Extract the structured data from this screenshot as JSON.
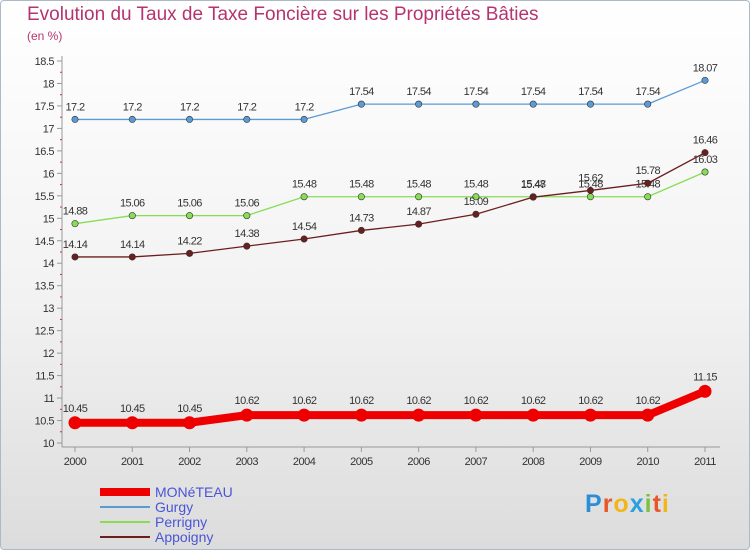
{
  "chart_data": {
    "type": "line",
    "title": "Evolution du Taux de Taxe Foncière sur les Propriétés Bâties",
    "subtitle": "(en %)",
    "xlabel": "",
    "ylabel": "",
    "x": [
      "2000",
      "2001",
      "2002",
      "2003",
      "2004",
      "2005",
      "2006",
      "2007",
      "2008",
      "2009",
      "2010",
      "2011"
    ],
    "ylim": [
      10,
      18.5
    ],
    "yticks": [
      "10",
      "10.5",
      "11",
      "11.5",
      "12",
      "12.5",
      "13",
      "13.5",
      "14",
      "14.5",
      "15",
      "15.5",
      "16",
      "16.5",
      "17",
      "17.5",
      "18",
      "18.5"
    ],
    "grid": false,
    "series": [
      {
        "name": "MONéTEAU",
        "color": "#ee0000",
        "emphasis": true,
        "values": [
          10.45,
          10.45,
          10.45,
          10.62,
          10.62,
          10.62,
          10.62,
          10.62,
          10.62,
          10.62,
          10.62,
          11.15
        ],
        "labels": [
          "10.45",
          "10.45",
          "10.45",
          "10.62",
          "10.62",
          "10.62",
          "10.62",
          "10.62",
          "10.62",
          "10.62",
          "10.62",
          "11.15"
        ]
      },
      {
        "name": "Gurgy",
        "color": "#5b9bd5",
        "values": [
          17.2,
          17.2,
          17.2,
          17.2,
          17.2,
          17.54,
          17.54,
          17.54,
          17.54,
          17.54,
          17.54,
          18.07
        ],
        "labels": [
          "17.2",
          "17.2",
          "17.2",
          "17.2",
          "17.2",
          "17.54",
          "17.54",
          "17.54",
          "17.54",
          "17.54",
          "17.54",
          "18.07"
        ]
      },
      {
        "name": "Perrigny",
        "color": "#88dd55",
        "values": [
          14.88,
          15.06,
          15.06,
          15.06,
          15.48,
          15.48,
          15.48,
          15.48,
          15.48,
          15.48,
          15.48,
          16.03
        ],
        "labels": [
          "14.88",
          "15.06",
          "15.06",
          "15.06",
          "15.48",
          "15.48",
          "15.48",
          "15.48",
          "15.48",
          "15.48",
          "15.48",
          "16.03"
        ]
      },
      {
        "name": "Appoigny",
        "color": "#6b1e1e",
        "values": [
          14.14,
          14.14,
          14.22,
          14.38,
          14.54,
          14.73,
          14.87,
          15.09,
          15.47,
          15.62,
          15.78,
          16.46
        ],
        "labels": [
          "14.14",
          "14.14",
          "14.22",
          "14.38",
          "14.54",
          "14.73",
          "14.87",
          "15.09",
          "15.47",
          "15.62",
          "15.78",
          "16.46"
        ]
      }
    ]
  },
  "logo": {
    "letters": [
      "P",
      "r",
      "o",
      "x",
      "i",
      "t",
      "i"
    ],
    "colors": [
      "#2a8fd8",
      "#e8572a",
      "#f2b617",
      "#2aa0e0",
      "#7cc242",
      "#e8572a",
      "#f2b617"
    ]
  }
}
